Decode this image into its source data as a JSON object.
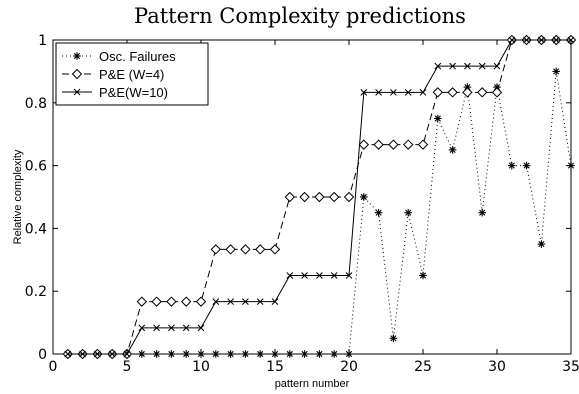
{
  "chart_data": {
    "type": "line",
    "title": "Pattern Complexity predictions",
    "xlabel": "pattern number",
    "ylabel": "Relative complexity",
    "xlim": [
      0,
      35
    ],
    "ylim": [
      0,
      1
    ],
    "xticks": [
      0,
      5,
      10,
      15,
      20,
      25,
      30,
      35
    ],
    "yticks": [
      0,
      0.2,
      0.4,
      0.6,
      0.8,
      1
    ],
    "xtick_labels": [
      "0",
      "5",
      "10",
      "15",
      "20",
      "25",
      "30",
      "35"
    ],
    "ytick_labels": [
      "0",
      "0.2",
      "0.4",
      "0.6",
      "0.8",
      "1"
    ],
    "grid": false,
    "legend_position": "top-left",
    "x": [
      1,
      2,
      3,
      4,
      5,
      6,
      7,
      8,
      9,
      10,
      11,
      12,
      13,
      14,
      15,
      16,
      17,
      18,
      19,
      20,
      21,
      22,
      23,
      24,
      25,
      26,
      27,
      28,
      29,
      30,
      31,
      32,
      33,
      34,
      35
    ],
    "series": [
      {
        "name": "Osc. Failures",
        "line_style": "dotted",
        "marker": "asterisk",
        "color": "#000000",
        "values": [
          0,
          0,
          0,
          0,
          0,
          0,
          0,
          0,
          0,
          0,
          0,
          0,
          0,
          0,
          0,
          0,
          0,
          0,
          0,
          0,
          0.5,
          0.45,
          0.05,
          0.45,
          0.25,
          0.75,
          0.65,
          0.85,
          0.45,
          0.85,
          0.6,
          0.6,
          0.35,
          0.9,
          0.6
        ]
      },
      {
        "name": "P&E (W=4)",
        "line_style": "dashed",
        "marker": "diamond",
        "color": "#000000",
        "values": [
          0,
          0,
          0,
          0,
          0,
          0.1667,
          0.1667,
          0.1667,
          0.1667,
          0.1667,
          0.3333,
          0.3333,
          0.3333,
          0.3333,
          0.3333,
          0.5,
          0.5,
          0.5,
          0.5,
          0.5,
          0.6667,
          0.6667,
          0.6667,
          0.6667,
          0.6667,
          0.8333,
          0.8333,
          0.8333,
          0.8333,
          0.8333,
          1,
          1,
          1,
          1,
          1
        ]
      },
      {
        "name": "P&E(W=10)",
        "line_style": "solid",
        "marker": "x",
        "color": "#000000",
        "values": [
          0,
          0,
          0,
          0,
          0,
          0.0833,
          0.0833,
          0.0833,
          0.0833,
          0.0833,
          0.1667,
          0.1667,
          0.1667,
          0.1667,
          0.1667,
          0.25,
          0.25,
          0.25,
          0.25,
          0.25,
          0.8333,
          0.8333,
          0.8333,
          0.8333,
          0.8333,
          0.9167,
          0.9167,
          0.9167,
          0.9167,
          0.9167,
          1,
          1,
          1,
          1,
          1
        ]
      }
    ]
  }
}
